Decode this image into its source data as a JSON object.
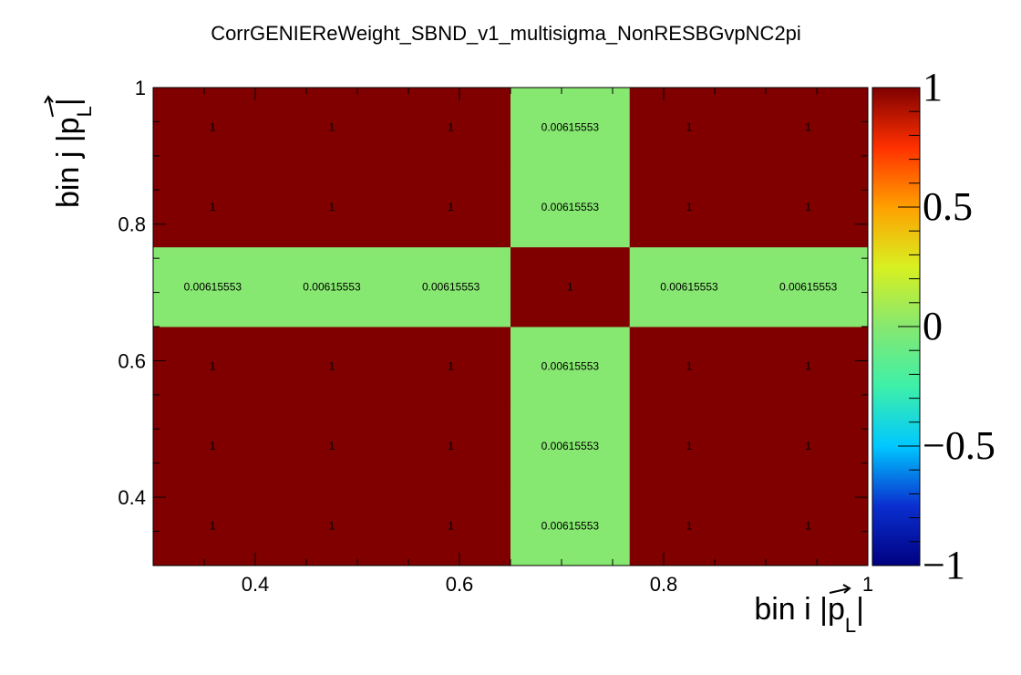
{
  "chart_data": {
    "type": "heatmap",
    "title": "CorrGENIEReWeight_SBND_v1_multisigma_NonRESBGvpNC2pi",
    "xlabel": {
      "main": "bin i |",
      "sym": "p",
      "sub": "L",
      "end": "|"
    },
    "ylabel": {
      "main": "bin j |",
      "sym": "p",
      "sub": "L",
      "end": "|"
    },
    "x_edges": [
      0.3,
      0.4167,
      0.5333,
      0.65,
      0.7667,
      0.8833,
      1.0
    ],
    "y_edges": [
      0.3,
      0.4167,
      0.5333,
      0.65,
      0.7667,
      0.8833,
      1.0
    ],
    "xlim": [
      0.3,
      1.0
    ],
    "ylim": [
      0.3,
      1.0
    ],
    "x_ticks": [
      0.4,
      0.6,
      0.8,
      1.0
    ],
    "x_tick_labels": [
      "0.4",
      "0.6",
      "0.8",
      "1"
    ],
    "y_ticks": [
      0.4,
      0.6,
      0.8,
      1.0
    ],
    "y_tick_labels": [
      "0.4",
      "0.6",
      "0.8",
      "1"
    ],
    "values": [
      [
        1,
        1,
        1,
        0.00615553,
        1,
        1
      ],
      [
        1,
        1,
        1,
        0.00615553,
        1,
        1
      ],
      [
        1,
        1,
        1,
        0.00615553,
        1,
        1
      ],
      [
        0.00615553,
        0.00615553,
        0.00615553,
        1,
        0.00615553,
        0.00615553
      ],
      [
        1,
        1,
        1,
        0.00615553,
        1,
        1
      ],
      [
        1,
        1,
        1,
        0.00615553,
        1,
        1
      ]
    ],
    "cell_labels": [
      [
        "1",
        "1",
        "1",
        "0.00615553",
        "1",
        "1"
      ],
      [
        "1",
        "1",
        "1",
        "0.00615553",
        "1",
        "1"
      ],
      [
        "1",
        "1",
        "1",
        "0.00615553",
        "1",
        "1"
      ],
      [
        "0.00615553",
        "0.00615553",
        "0.00615553",
        "1",
        "0.00615553",
        "0.00615553"
      ],
      [
        "1",
        "1",
        "1",
        "0.00615553",
        "1",
        "1"
      ],
      [
        "1",
        "1",
        "1",
        "0.00615553",
        "1",
        "1"
      ]
    ],
    "zlim": [
      -1,
      1
    ],
    "z_ticks": [
      1,
      0.5,
      0,
      -0.5,
      -1
    ],
    "z_tick_labels": [
      "1",
      "0.5",
      "0",
      "−0.5",
      "−1"
    ],
    "colors": {
      "high": "#800000",
      "near_zero": "#86e870",
      "colorbar_stops": [
        "#000080",
        "#0a2fd0",
        "#00c8ff",
        "#3ef0a8",
        "#86e870",
        "#d8f020",
        "#ffa000",
        "#ff3000",
        "#800000"
      ]
    }
  }
}
